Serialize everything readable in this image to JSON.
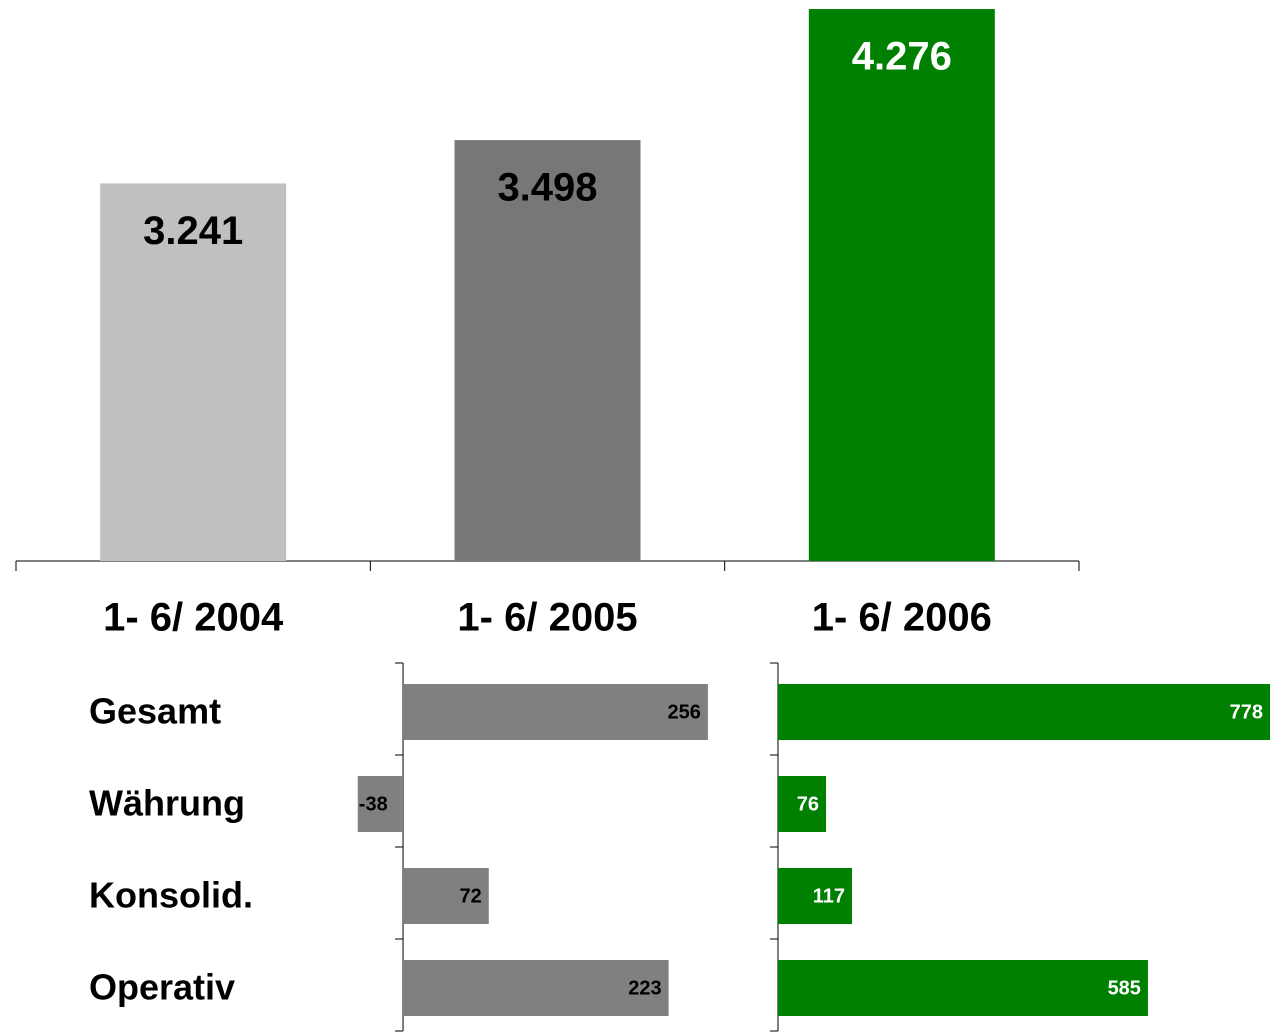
{
  "chart_data": [
    {
      "type": "bar",
      "categories": [
        "1- 6/ 2004",
        "1- 6/ 2005",
        "1- 6/ 2006"
      ],
      "values": [
        3241,
        3498,
        4276
      ],
      "value_labels": [
        "3.241",
        "3.498",
        "4.276"
      ],
      "colors": [
        "#c0c0c0",
        "#777777",
        "#008000"
      ],
      "value_label_colors": [
        "#000000",
        "#000000",
        "#ffffff"
      ],
      "ylim": [
        1000,
        4300
      ]
    },
    {
      "type": "hbar",
      "categories": [
        "Gesamt",
        "Währung",
        "Konsolid.",
        "Operativ"
      ],
      "values": [
        256,
        -38,
        72,
        223
      ],
      "color": "#808080",
      "value_label_color": "#000000",
      "xlim": [
        -40,
        300
      ]
    },
    {
      "type": "hbar",
      "values": [
        778,
        76,
        117,
        585
      ],
      "color": "#008000",
      "value_label_color": "#ffffff",
      "xlim": [
        0,
        778
      ]
    }
  ]
}
